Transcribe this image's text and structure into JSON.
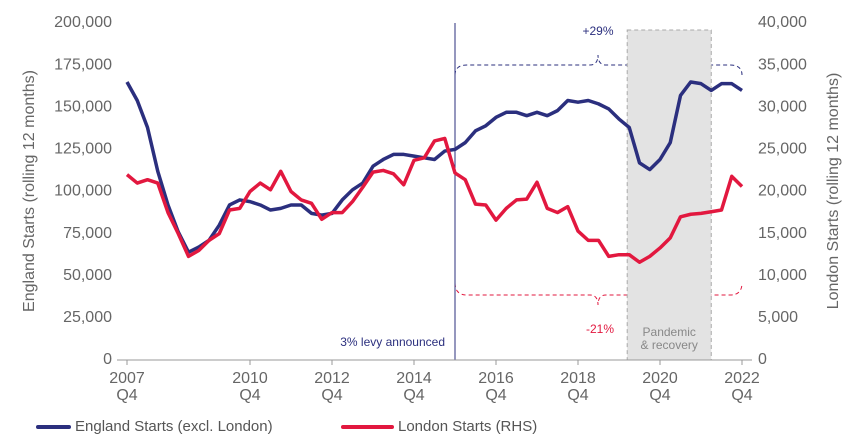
{
  "chart_data": {
    "type": "line",
    "y_label": "England Starts (rolling 12 months)",
    "y2_label": "London Starts (rolling 12 months)",
    "x": [
      2007.75,
      2008.0,
      2008.25,
      2008.5,
      2008.75,
      2009.0,
      2009.25,
      2009.5,
      2009.75,
      2010.0,
      2010.25,
      2010.5,
      2010.75,
      2011.0,
      2011.25,
      2011.5,
      2011.75,
      2012.0,
      2012.25,
      2012.5,
      2012.75,
      2013.0,
      2013.25,
      2013.5,
      2013.75,
      2014.0,
      2014.25,
      2014.5,
      2014.75,
      2015.0,
      2015.25,
      2015.5,
      2015.75,
      2016.0,
      2016.25,
      2016.5,
      2016.75,
      2017.0,
      2017.25,
      2017.5,
      2017.75,
      2018.0,
      2018.25,
      2018.5,
      2018.75,
      2019.0,
      2019.25,
      2019.5,
      2019.75,
      2020.0,
      2020.25,
      2020.5,
      2020.75,
      2021.0,
      2021.25,
      2021.5,
      2021.75,
      2022.0,
      2022.25,
      2022.5,
      2022.75
    ],
    "series": [
      {
        "name": "England Starts (excl. London)",
        "color": "#2b2f7e",
        "values": [
          165000,
          154000,
          138000,
          112000,
          92000,
          76000,
          64000,
          67000,
          71000,
          80000,
          92000,
          95000,
          94000,
          92000,
          89000,
          90000,
          92000,
          92000,
          87000,
          86000,
          87000,
          95000,
          101000,
          105000,
          115000,
          119000,
          122000,
          122000,
          121000,
          120000,
          119000,
          124000,
          125000,
          129000,
          136000,
          139000,
          144000,
          147000,
          147000,
          145000,
          147000,
          145000,
          148000,
          154000,
          153000,
          154000,
          152000,
          149000,
          143000,
          138000,
          117000,
          113000,
          119000,
          129000,
          157000,
          165000,
          164000,
          160000,
          164000,
          164000,
          160000
        ]
      },
      {
        "name": "London Starts (RHS)",
        "color": "#e2183f",
        "axis": "y2",
        "values": [
          22000,
          21000,
          21400,
          21000,
          17500,
          15000,
          12300,
          13000,
          14200,
          15000,
          17800,
          18000,
          20000,
          21000,
          20200,
          22400,
          20000,
          19000,
          18600,
          16700,
          17500,
          17500,
          18800,
          20500,
          22300,
          22500,
          22100,
          20800,
          23700,
          24000,
          26000,
          26300,
          22200,
          21400,
          18500,
          18400,
          16600,
          18000,
          19000,
          19100,
          21100,
          18000,
          17500,
          18200,
          15300,
          14200,
          14200,
          12300,
          12500,
          12500,
          11600,
          12300,
          13300,
          14500,
          17000,
          17300,
          17400,
          17600,
          17800,
          21800,
          20600
        ]
      }
    ],
    "xlim": [
      2007.75,
      2022.75
    ],
    "xticks": [
      {
        "value": 2007.75,
        "label": "2007\nQ4"
      },
      {
        "value": 2010.75,
        "label": "2010\nQ4"
      },
      {
        "value": 2012.75,
        "label": "2012\nQ4"
      },
      {
        "value": 2014.75,
        "label": "2014\nQ4"
      },
      {
        "value": 2016.75,
        "label": "2016\nQ4"
      },
      {
        "value": 2018.75,
        "label": "2018\nQ4"
      },
      {
        "value": 2020.75,
        "label": "2020\nQ4"
      },
      {
        "value": 2022.75,
        "label": "2022\nQ4"
      }
    ],
    "ylim": [
      0,
      200000
    ],
    "yticks": [
      0,
      {
        "value": 25000,
        "label": "25,000"
      },
      {
        "value": 50000,
        "label": "50,000"
      },
      {
        "value": 75000,
        "label": "75,000"
      },
      {
        "value": 100000,
        "label": "100,000"
      },
      {
        "value": 125000,
        "label": "125,000"
      },
      {
        "value": 150000,
        "label": "150,000"
      },
      {
        "value": 175000,
        "label": "175,000"
      },
      {
        "value": 200000,
        "label": "200,000"
      }
    ],
    "y2lim": [
      0,
      40000
    ],
    "y2ticks": [
      0,
      {
        "value": 5000,
        "label": "5,000"
      },
      {
        "value": 10000,
        "label": "10,000"
      },
      {
        "value": 15000,
        "label": "15,000"
      },
      {
        "value": 20000,
        "label": "20,000"
      },
      {
        "value": 25000,
        "label": "25,000"
      },
      {
        "value": 30000,
        "label": "30,000"
      },
      {
        "value": 35000,
        "label": "35,000"
      },
      {
        "value": 40000,
        "label": "40,000"
      }
    ],
    "annotations": {
      "levy": {
        "x": 2015.75,
        "label": "3% levy announced"
      },
      "pandemic": {
        "x": [
          2019.95,
          2022.0
        ],
        "label": "Pandemic\n& recovery"
      },
      "england_change": "+29%",
      "london_change": "-21%"
    }
  }
}
